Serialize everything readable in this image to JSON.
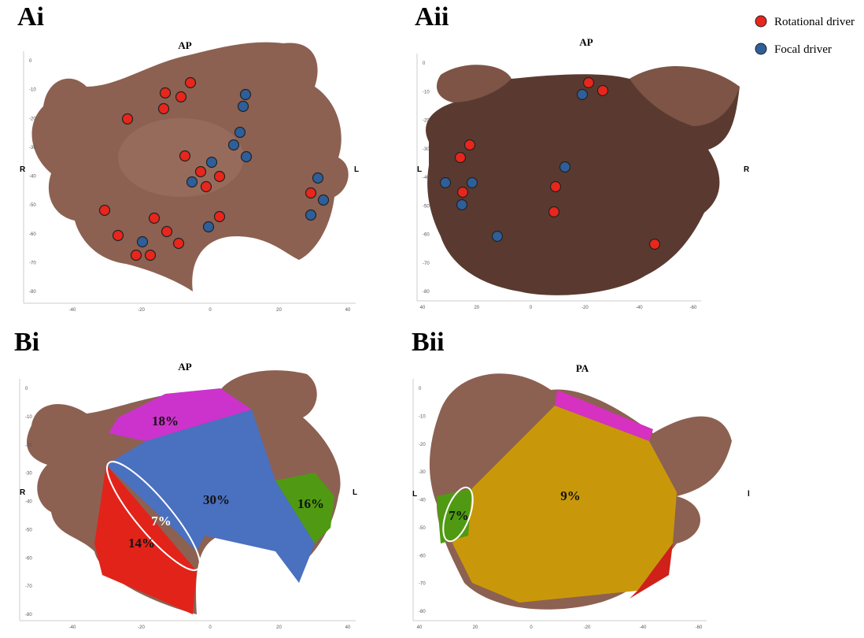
{
  "legend": {
    "items": [
      {
        "label": "Rotational driver"
      },
      {
        "label": "Focal driver"
      }
    ]
  },
  "panels": [
    {
      "label": "Ai",
      "view": "AP",
      "left": "R",
      "right": "L",
      "yticks": [
        0,
        -10,
        -20,
        -30,
        -40,
        -50,
        -60,
        -70,
        -80
      ],
      "xticks": [
        -40,
        -20,
        0,
        20,
        40
      ]
    },
    {
      "label": "Aii",
      "view": "AP",
      "left": "L",
      "right": "R",
      "yticks": [
        0,
        -10,
        -20,
        -30,
        -40,
        -50,
        -60,
        -70,
        -80
      ],
      "xticks": [
        40,
        20,
        0,
        -20,
        -40,
        -60
      ]
    },
    {
      "label": "Bi",
      "view": "AP",
      "left": "R",
      "right": "L",
      "yticks": [
        0,
        -10,
        -20,
        -30,
        -40,
        -50,
        -60,
        -70,
        -80
      ],
      "xticks": [
        -40,
        -20,
        0,
        20,
        40
      ],
      "regions": [
        "18%",
        "30%",
        "16%",
        "7%",
        "14%"
      ]
    },
    {
      "label": "Bii",
      "view": "PA",
      "left": "L",
      "right": "l",
      "yticks": [
        0,
        -10,
        -20,
        -30,
        -40,
        -50,
        -60,
        -70,
        -80
      ],
      "xticks": [
        40,
        20,
        0,
        -20,
        -40,
        -60
      ],
      "regions": [
        "7%",
        "9%"
      ]
    }
  ]
}
